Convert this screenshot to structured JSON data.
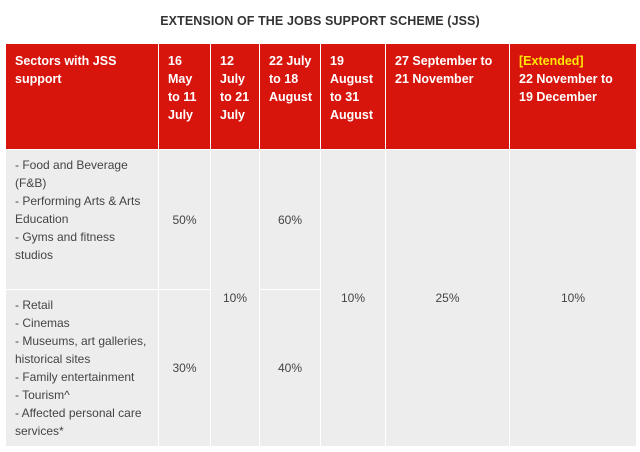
{
  "title": "EXTENSION OF THE JOBS SUPPORT SCHEME (JSS)",
  "headers": {
    "sectors": "Sectors with JSS support",
    "p1": "16 May to 11 July",
    "p2": "12 July to 21 July",
    "p3": "22 July to 18 August",
    "p4": "19 August to 31 August",
    "p5": "27 September to 21 November",
    "p6_tag": "[Extended]",
    "p6": "22 November to 19 December"
  },
  "group1": {
    "sectors": [
      "- Food and Beverage (F&B)",
      "- Performing Arts & Arts Education",
      "- Gyms and fitness studios"
    ],
    "p1": "50%",
    "p3": "60%"
  },
  "group2": {
    "sectors": [
      "- Retail",
      "- Cinemas",
      "- Museums, art galleries, historical sites",
      "- Family entertainment",
      "- Tourism^",
      "- Affected personal care services*"
    ],
    "p1": "30%",
    "p3": "40%"
  },
  "shared": {
    "p2": "10%",
    "p4": "10%",
    "p5": "25%",
    "p6": "10%"
  },
  "colors": {
    "header_bg": "#d7150d",
    "header_text": "#ffffff",
    "extended_tag": "#ffe900",
    "cell_bg": "#ededed"
  }
}
